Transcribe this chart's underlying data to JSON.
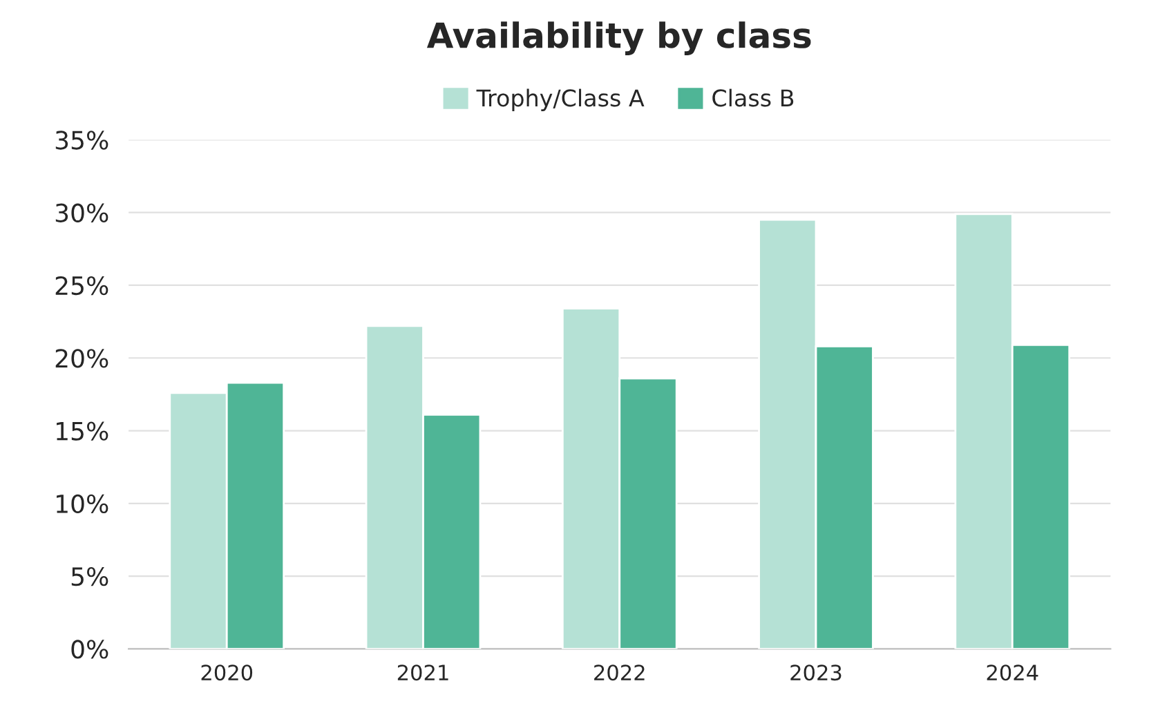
{
  "chart_data": {
    "type": "bar",
    "title": "Availability by class",
    "categories": [
      "2020",
      "2021",
      "2022",
      "2023",
      "2024"
    ],
    "series": [
      {
        "name": "Trophy/Class A",
        "color": "#b5e1d5",
        "values": [
          17.6,
          22.2,
          23.4,
          29.5,
          29.9
        ]
      },
      {
        "name": "Class B",
        "color": "#4fb596",
        "values": [
          18.3,
          16.1,
          18.6,
          20.8,
          20.9
        ]
      }
    ],
    "ylim": [
      0,
      35
    ],
    "yticks": [
      {
        "value": 0,
        "label": "0%"
      },
      {
        "value": 5,
        "label": "5%"
      },
      {
        "value": 10,
        "label": "10%"
      },
      {
        "value": 15,
        "label": "15%"
      },
      {
        "value": 20,
        "label": "20%"
      },
      {
        "value": 25,
        "label": "25%"
      },
      {
        "value": 30,
        "label": "30%"
      },
      {
        "value": 35,
        "label": "35%"
      }
    ],
    "grid": "y",
    "legend": "top"
  }
}
